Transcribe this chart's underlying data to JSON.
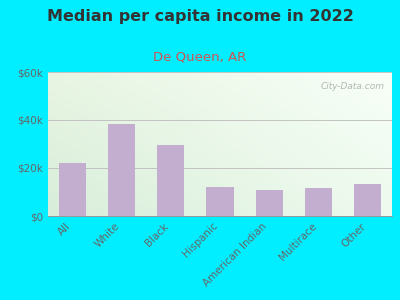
{
  "title": "Median per capita income in 2022",
  "subtitle": "De Queen, AR",
  "categories": [
    "All",
    "White",
    "Black",
    "Hispanic",
    "American Indian",
    "Multirace",
    "Other"
  ],
  "values": [
    22000,
    38500,
    29500,
    12000,
    11000,
    11500,
    13500
  ],
  "bar_color": "#c4aed0",
  "background_outer": "#00eeff",
  "title_color": "#333333",
  "subtitle_color": "#cc5555",
  "tick_color": "#666666",
  "ylim": [
    0,
    60000
  ],
  "yticks": [
    0,
    20000,
    40000,
    60000
  ],
  "ytick_labels": [
    "$0",
    "$20k",
    "$40k",
    "$60k"
  ],
  "watermark": "City-Data.com",
  "title_fontsize": 11.5,
  "subtitle_fontsize": 9.5,
  "tick_fontsize": 7.5,
  "grad_top_left": "#e8f5e2",
  "grad_top_right": "#f8fff8",
  "grad_bottom_left": "#d8eeda",
  "grad_bottom_right": "#eefaee"
}
